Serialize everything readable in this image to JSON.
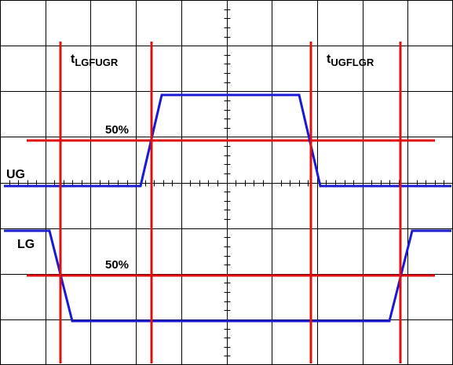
{
  "labels": {
    "t_left_main": "t",
    "t_left_sub": "LGFUGR",
    "t_right_main": "t",
    "t_right_sub": "UGFLGR",
    "ug": "UG",
    "lg": "LG",
    "pct_upper": "50%",
    "pct_lower": "50%"
  },
  "colors": {
    "grid": "#000000",
    "trace": "#1a1ad0",
    "marker": "#e01010",
    "background": "#ffffff"
  },
  "grid": {
    "divisions_x": 10,
    "divisions_y": 8,
    "minor_ticks_per_division": 5
  }
}
